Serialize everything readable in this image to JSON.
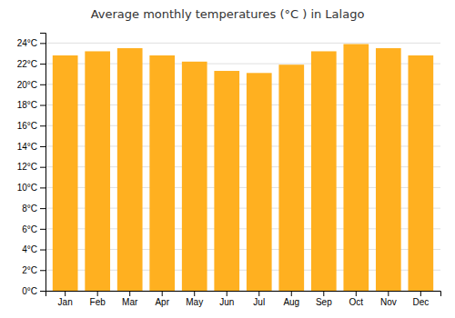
{
  "chart_data": {
    "type": "bar",
    "title": "Average monthly temperatures (°C ) in Lalago",
    "categories": [
      "Jan",
      "Feb",
      "Mar",
      "Apr",
      "May",
      "Jun",
      "Jul",
      "Aug",
      "Sep",
      "Oct",
      "Nov",
      "Dec"
    ],
    "values": [
      22.8,
      23.2,
      23.5,
      22.8,
      22.2,
      21.3,
      21.1,
      21.9,
      23.2,
      23.9,
      23.5,
      22.8
    ],
    "color": "#FFB020",
    "ylim": [
      0,
      25
    ],
    "yticks": [
      {
        "value": 0,
        "label": "0°C"
      },
      {
        "value": 2,
        "label": "2°C"
      },
      {
        "value": 4,
        "label": "4°C"
      },
      {
        "value": 6,
        "label": "6°C"
      },
      {
        "value": 8,
        "label": "8°C"
      },
      {
        "value": 10,
        "label": "10°C"
      },
      {
        "value": 12,
        "label": "12°C"
      },
      {
        "value": 14,
        "label": "14°C"
      },
      {
        "value": 16,
        "label": "16°C"
      },
      {
        "value": 18,
        "label": "18°C"
      },
      {
        "value": 20,
        "label": "20°C"
      },
      {
        "value": 22,
        "label": "22°C"
      },
      {
        "value": 24,
        "label": "24°C"
      }
    ],
    "grid": true
  }
}
